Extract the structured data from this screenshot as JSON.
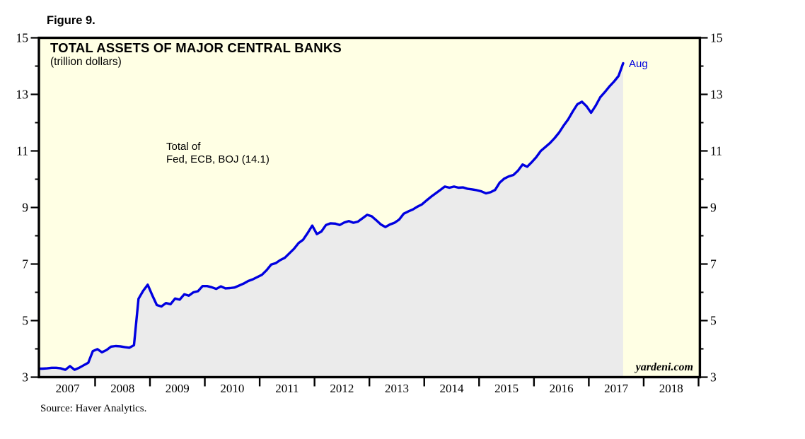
{
  "figure_label": "Figure 9.",
  "header": {
    "title": "TOTAL ASSETS OF MAJOR CENTRAL BANKS",
    "subtitle": "(trillion dollars)"
  },
  "annotation": {
    "line1": "Total of",
    "line2": "Fed, ECB, BOJ (14.1)"
  },
  "end_point_label": "Aug",
  "watermark": "yardeni.com",
  "source_note": "Source: Haver Analytics.",
  "colors": {
    "plot_background": "#ffffe4",
    "area_fill": "#ebebeb",
    "line": "#0000e0",
    "end_label_text": "#0000dd",
    "axis": "#000000"
  },
  "chart_data": {
    "type": "area",
    "title": "TOTAL ASSETS OF MAJOR CENTRAL BANKS",
    "subtitle": "(trillion dollars)",
    "series_name": "Total of Fed, ECB, BOJ",
    "units": "trillion dollars",
    "x_start": "2007-01",
    "x_end": "2017-08",
    "last_value": 14.1,
    "last_point_label": "Aug",
    "ylim": [
      3,
      15
    ],
    "y_ticks": [
      3,
      5,
      7,
      9,
      11,
      13,
      15
    ],
    "y_minor_ticks": [
      4,
      6,
      8,
      10,
      12,
      14
    ],
    "x_tick_years": [
      2007,
      2008,
      2009,
      2010,
      2011,
      2012,
      2013,
      2014,
      2015,
      2016,
      2017,
      2018
    ],
    "grid": false,
    "legend_position": "none",
    "monthly_values": [
      3.3,
      3.31,
      3.33,
      3.33,
      3.31,
      3.26,
      3.39,
      3.26,
      3.33,
      3.42,
      3.51,
      3.92,
      3.99,
      3.88,
      3.96,
      4.08,
      4.1,
      4.09,
      4.06,
      4.04,
      4.13,
      5.77,
      6.05,
      6.27,
      5.9,
      5.55,
      5.5,
      5.62,
      5.58,
      5.78,
      5.74,
      5.93,
      5.88,
      6.0,
      6.04,
      6.22,
      6.22,
      6.18,
      6.12,
      6.21,
      6.14,
      6.15,
      6.17,
      6.24,
      6.31,
      6.4,
      6.46,
      6.54,
      6.62,
      6.78,
      6.98,
      7.03,
      7.14,
      7.22,
      7.38,
      7.54,
      7.74,
      7.86,
      8.1,
      8.36,
      8.06,
      8.15,
      8.38,
      8.44,
      8.43,
      8.38,
      8.47,
      8.52,
      8.46,
      8.5,
      8.62,
      8.74,
      8.69,
      8.55,
      8.4,
      8.31,
      8.4,
      8.46,
      8.57,
      8.78,
      8.86,
      8.93,
      9.03,
      9.11,
      9.25,
      9.38,
      9.5,
      9.62,
      9.74,
      9.7,
      9.74,
      9.7,
      9.71,
      9.66,
      9.64,
      9.61,
      9.57,
      9.5,
      9.54,
      9.62,
      9.88,
      10.02,
      10.1,
      10.15,
      10.3,
      10.52,
      10.44,
      10.6,
      10.78,
      11.0,
      11.14,
      11.28,
      11.45,
      11.65,
      11.9,
      12.12,
      12.4,
      12.65,
      12.74,
      12.58,
      12.35,
      12.6,
      12.9,
      13.08,
      13.28,
      13.45,
      13.65,
      14.1
    ]
  }
}
